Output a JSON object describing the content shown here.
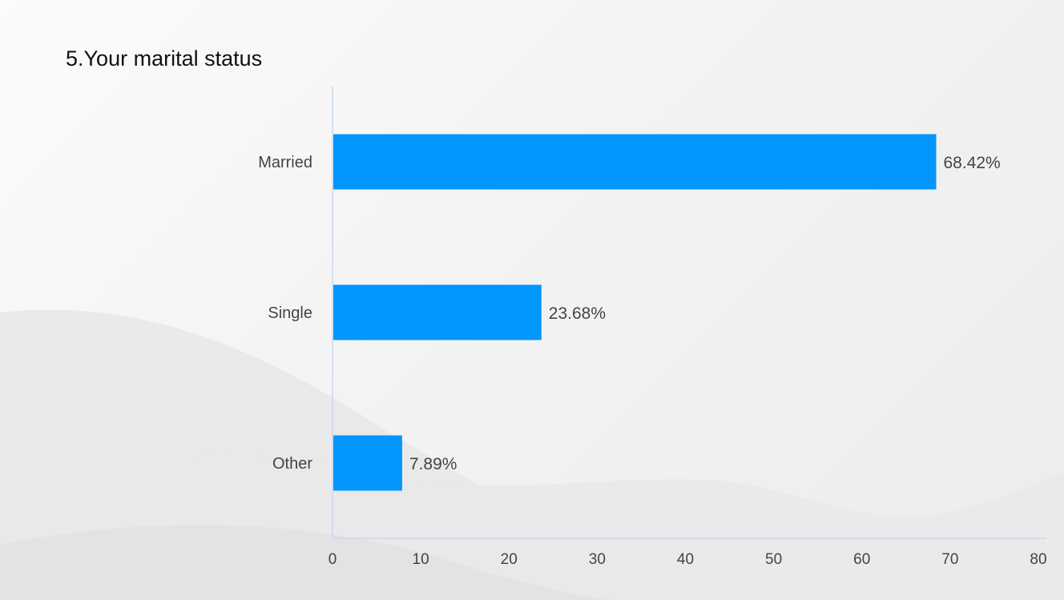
{
  "slide": {
    "title": "5.Your marital status"
  },
  "colors": {
    "bar": "#0396fe",
    "axis": "#c9d8ee",
    "label": "#444444"
  },
  "chart_data": {
    "type": "bar",
    "orientation": "horizontal",
    "title": "5.Your marital status",
    "categories": [
      "Married",
      "Single",
      "Other"
    ],
    "values": [
      68.42,
      23.68,
      7.89
    ],
    "value_labels": [
      "68.42%",
      "23.68%",
      "7.89%"
    ],
    "xlim": [
      0,
      80
    ],
    "xticks": [
      0,
      10,
      20,
      30,
      40,
      50,
      60,
      70,
      80
    ],
    "xlabel": "",
    "ylabel": "",
    "grid": false,
    "legend": "none"
  }
}
